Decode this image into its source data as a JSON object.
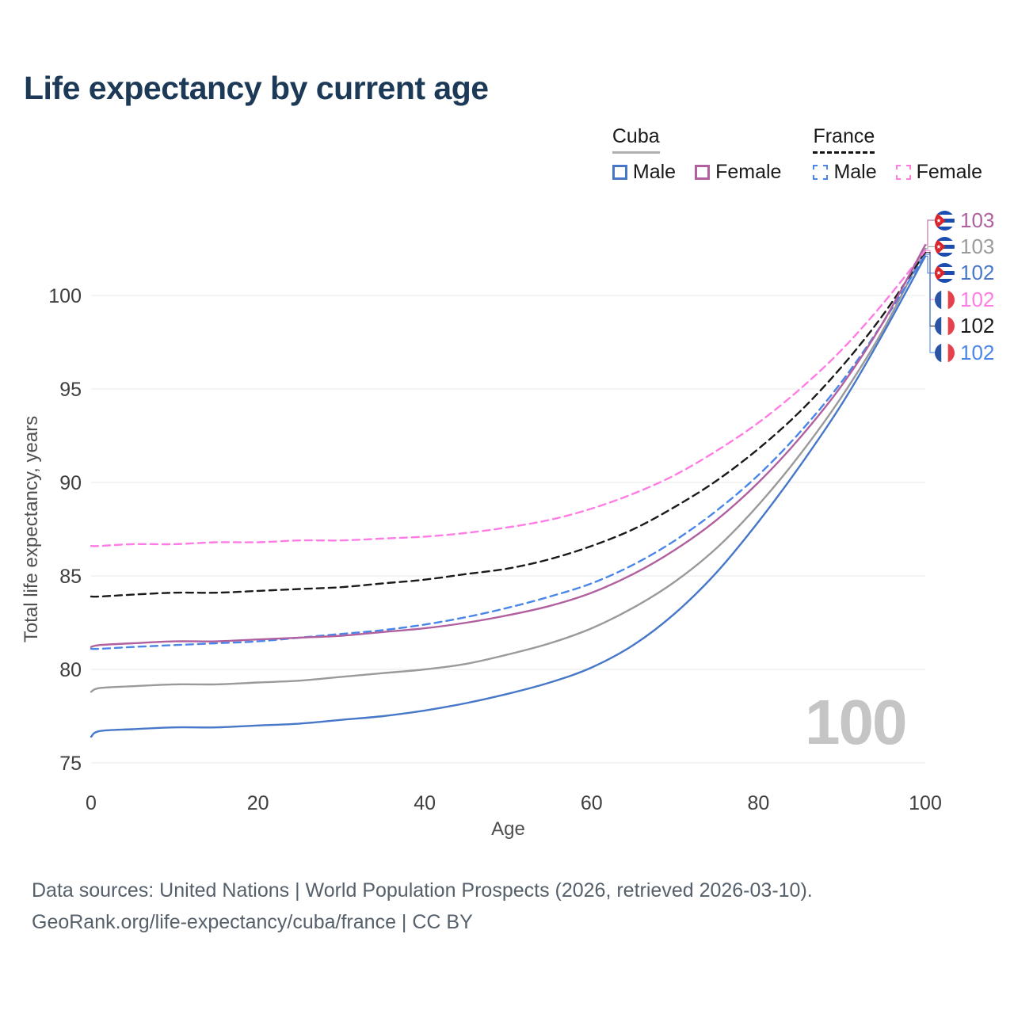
{
  "title": "Life expectancy by current age",
  "legend": {
    "cuba": "Cuba",
    "france": "France",
    "male": "Male",
    "female": "Female"
  },
  "watermark": "100",
  "footer": {
    "line1": "Data sources: United Nations | World Population Prospects (2026, retrieved 2026-03-10).",
    "line2": "GeoRank.org/life-expectancy/cuba/france | CC BY"
  },
  "chart_data": {
    "type": "line",
    "title": "Life expectancy by current age",
    "xlabel": "Age",
    "ylabel": "Total life expectancy, years",
    "xlim": [
      0,
      100
    ],
    "ylim": [
      75,
      103.5
    ],
    "xticks": [
      0,
      20,
      40,
      60,
      80,
      100
    ],
    "yticks": [
      75,
      80,
      85,
      90,
      95,
      100
    ],
    "grid": "horizontal",
    "x": [
      0,
      1,
      5,
      10,
      15,
      20,
      25,
      30,
      35,
      40,
      45,
      50,
      55,
      60,
      65,
      70,
      75,
      80,
      85,
      90,
      95,
      100
    ],
    "series": [
      {
        "name": "Cuba Male",
        "country": "Cuba",
        "sex": "Male",
        "dash": "solid",
        "color": "#4677c8",
        "values": [
          76.4,
          76.7,
          76.8,
          76.9,
          76.9,
          77.0,
          77.1,
          77.3,
          77.5,
          77.8,
          78.2,
          78.7,
          79.3,
          80.1,
          81.3,
          83.0,
          85.2,
          87.9,
          90.9,
          94.2,
          98.0,
          102.1
        ]
      },
      {
        "name": "Cuba Female",
        "country": "Cuba",
        "sex": "Female",
        "dash": "solid",
        "color": "#b0609f",
        "values": [
          81.2,
          81.3,
          81.4,
          81.5,
          81.5,
          81.6,
          81.7,
          81.8,
          82.0,
          82.2,
          82.5,
          82.9,
          83.4,
          84.1,
          85.1,
          86.4,
          88.0,
          90.0,
          92.4,
          95.2,
          98.6,
          102.7
        ]
      },
      {
        "name": "Cuba (all)",
        "country": "Cuba",
        "sex": "All",
        "dash": "solid",
        "color": "#9a9a9a",
        "values": [
          78.8,
          79.0,
          79.1,
          79.2,
          79.2,
          79.3,
          79.4,
          79.6,
          79.8,
          80.0,
          80.3,
          80.8,
          81.4,
          82.2,
          83.3,
          84.7,
          86.5,
          88.8,
          91.5,
          94.6,
          98.2,
          102.5
        ]
      },
      {
        "name": "France Male",
        "country": "France",
        "sex": "Male",
        "dash": "dashed",
        "color": "#4a86e8",
        "values": [
          81.1,
          81.1,
          81.2,
          81.3,
          81.4,
          81.5,
          81.7,
          81.9,
          82.1,
          82.4,
          82.8,
          83.3,
          83.9,
          84.6,
          85.6,
          86.9,
          88.5,
          90.4,
          92.7,
          95.4,
          98.6,
          102.2
        ]
      },
      {
        "name": "France Female",
        "country": "France",
        "sex": "Female",
        "dash": "dashed",
        "color": "#ff7ce5",
        "values": [
          86.6,
          86.6,
          86.7,
          86.7,
          86.8,
          86.8,
          86.9,
          86.9,
          87.0,
          87.1,
          87.3,
          87.6,
          88.0,
          88.6,
          89.4,
          90.4,
          91.7,
          93.2,
          95.0,
          97.1,
          99.6,
          102.4
        ]
      },
      {
        "name": "France (all)",
        "country": "France",
        "sex": "All",
        "dash": "dashed",
        "color": "#1a1a1a",
        "values": [
          83.9,
          83.9,
          84.0,
          84.1,
          84.1,
          84.2,
          84.3,
          84.4,
          84.6,
          84.8,
          85.1,
          85.4,
          85.9,
          86.6,
          87.5,
          88.7,
          90.1,
          91.8,
          93.8,
          96.2,
          99.0,
          102.3
        ]
      }
    ],
    "end_labels": [
      {
        "value": "103",
        "series": "Cuba Female",
        "flag": "cuba",
        "color": "#b0609f"
      },
      {
        "value": "103",
        "series": "Cuba (all)",
        "flag": "cuba",
        "color": "#9a9a9a"
      },
      {
        "value": "102",
        "series": "Cuba Male",
        "flag": "cuba",
        "color": "#4677c8"
      },
      {
        "value": "102",
        "series": "France Female",
        "flag": "france",
        "color": "#ff7ce5"
      },
      {
        "value": "102",
        "series": "France (all)",
        "flag": "france",
        "color": "#1a1a1a"
      },
      {
        "value": "102",
        "series": "France Male",
        "flag": "france",
        "color": "#4a86e8"
      }
    ],
    "legend_position": "top-right"
  }
}
